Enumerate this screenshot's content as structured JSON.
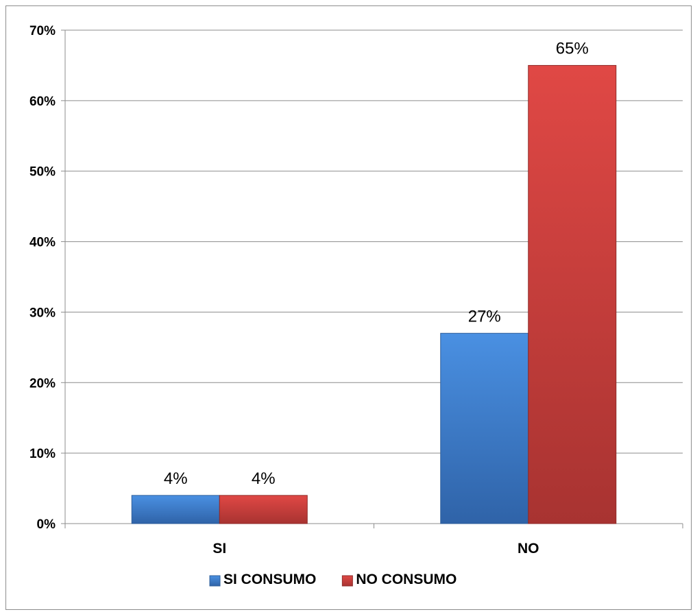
{
  "chart_data": {
    "type": "bar",
    "categories": [
      "SI",
      "NO"
    ],
    "series": [
      {
        "name": "SI CONSUMO",
        "values": [
          4,
          27
        ],
        "color": "#3d7fd1"
      },
      {
        "name": "NO CONSUMO",
        "values": [
          4,
          65
        ],
        "color": "#d23f3d"
      }
    ],
    "data_labels": [
      [
        "4%",
        "27%"
      ],
      [
        "4%",
        "65%"
      ]
    ],
    "title": "",
    "xlabel": "",
    "ylabel": "",
    "ylim": [
      0,
      70
    ],
    "y_ticks": [
      0,
      10,
      20,
      30,
      40,
      50,
      60,
      70
    ],
    "y_tick_labels": [
      "0%",
      "10%",
      "20%",
      "30%",
      "40%",
      "50%",
      "60%",
      "70%"
    ],
    "grid": true,
    "legend_position": "bottom"
  }
}
